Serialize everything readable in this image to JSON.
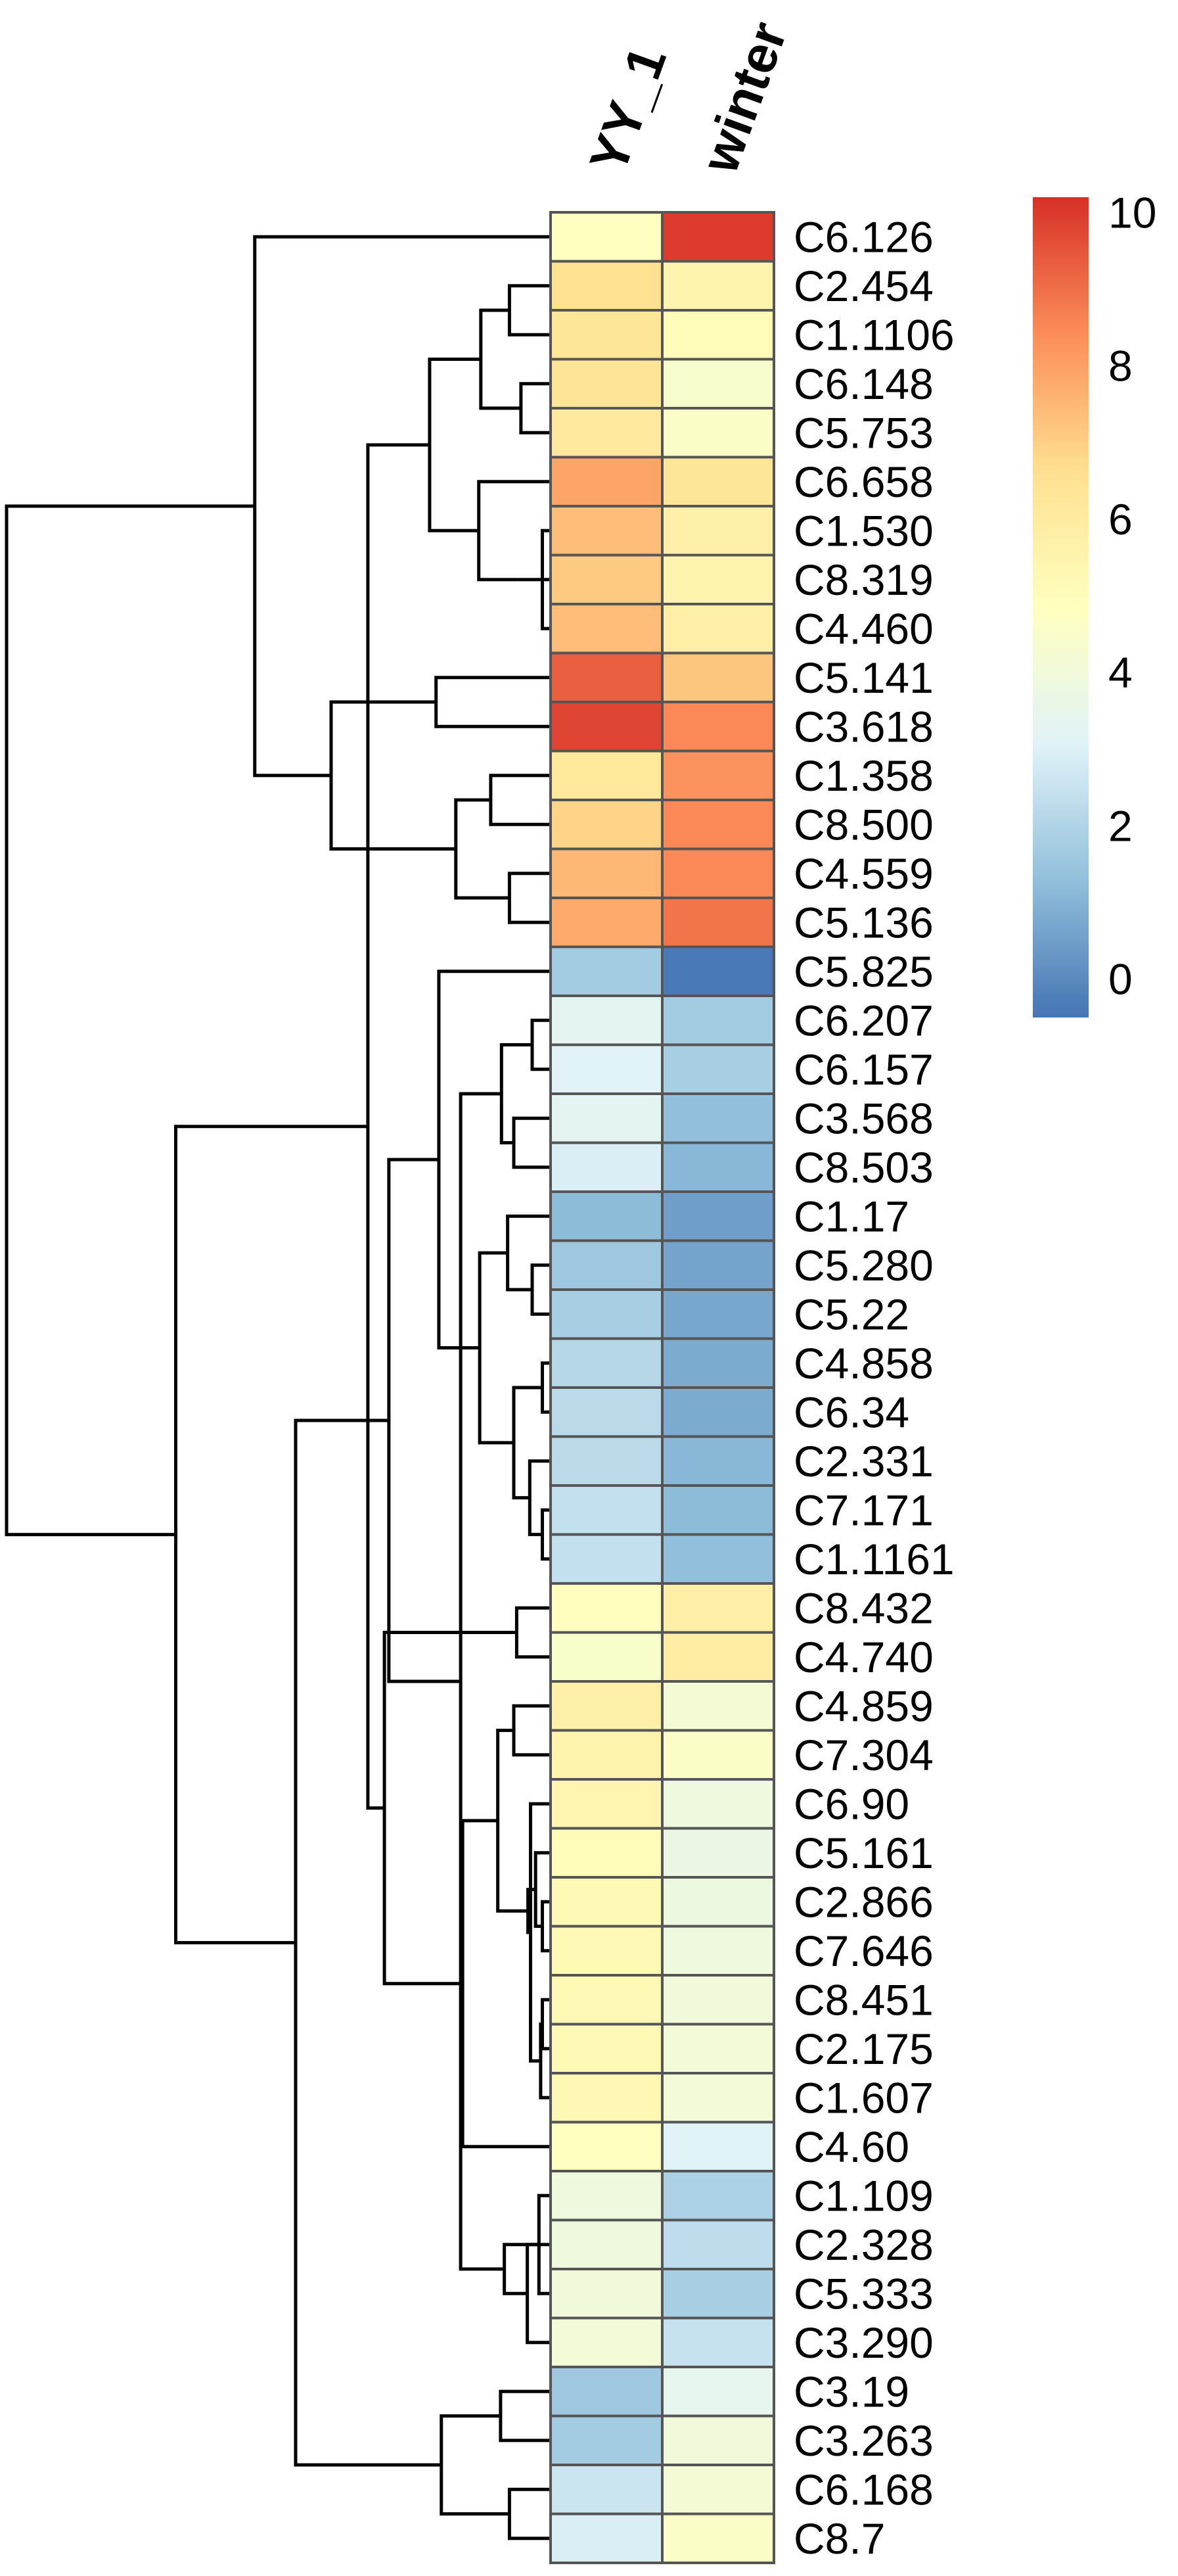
{
  "chart_data": {
    "type": "heatmap",
    "title": "",
    "columns": [
      "YY_1",
      "winter"
    ],
    "rows": [
      "C6.126",
      "C2.454",
      "C1.1106",
      "C6.148",
      "C5.753",
      "C6.658",
      "C1.530",
      "C8.319",
      "C4.460",
      "C5.141",
      "C3.618",
      "C1.358",
      "C8.500",
      "C4.559",
      "C5.136",
      "C5.825",
      "C6.207",
      "C6.157",
      "C3.568",
      "C8.503",
      "C1.17",
      "C5.280",
      "C5.22",
      "C4.858",
      "C6.34",
      "C2.331",
      "C7.171",
      "C1.1161",
      "C8.432",
      "C4.740",
      "C4.859",
      "C7.304",
      "C6.90",
      "C5.161",
      "C2.866",
      "C7.646",
      "C8.451",
      "C2.175",
      "C1.607",
      "C4.60",
      "C1.109",
      "C2.328",
      "C5.333",
      "C3.290",
      "C3.19",
      "C3.263",
      "C6.168",
      "C8.7"
    ],
    "values": [
      [
        4.8,
        10.0
      ],
      [
        6.6,
        5.5
      ],
      [
        6.3,
        5.1
      ],
      [
        6.4,
        4.4
      ],
      [
        6.1,
        4.6
      ],
      [
        7.9,
        6.3
      ],
      [
        7.4,
        5.7
      ],
      [
        7.1,
        5.5
      ],
      [
        7.4,
        5.8
      ],
      [
        9.3,
        7.2
      ],
      [
        9.8,
        8.5
      ],
      [
        6.2,
        8.3
      ],
      [
        6.9,
        8.5
      ],
      [
        7.5,
        8.5
      ],
      [
        7.8,
        8.9
      ],
      [
        1.7,
        -0.4
      ],
      [
        3.3,
        1.7
      ],
      [
        3.1,
        1.8
      ],
      [
        3.3,
        1.3
      ],
      [
        2.9,
        1.1
      ],
      [
        1.2,
        0.5
      ],
      [
        1.6,
        0.6
      ],
      [
        1.8,
        0.7
      ],
      [
        2.1,
        0.8
      ],
      [
        2.2,
        0.8
      ],
      [
        2.2,
        1.1
      ],
      [
        2.4,
        1.2
      ],
      [
        2.4,
        1.3
      ],
      [
        4.9,
        5.8
      ],
      [
        4.5,
        5.9
      ],
      [
        5.7,
        4.2
      ],
      [
        5.5,
        4.6
      ],
      [
        5.4,
        3.9
      ],
      [
        5.1,
        3.7
      ],
      [
        5.2,
        3.8
      ],
      [
        5.2,
        3.9
      ],
      [
        5.2,
        4.0
      ],
      [
        5.2,
        4.1
      ],
      [
        5.3,
        4.1
      ],
      [
        4.8,
        3.1
      ],
      [
        3.9,
        1.9
      ],
      [
        3.9,
        2.3
      ],
      [
        4.0,
        1.8
      ],
      [
        4.1,
        2.5
      ],
      [
        1.6,
        3.4
      ],
      [
        1.7,
        4.0
      ],
      [
        2.6,
        4.2
      ],
      [
        2.9,
        4.6
      ]
    ],
    "colorbar": {
      "ticks": [
        0,
        2,
        4,
        6,
        8,
        10
      ],
      "range": [
        -0.5,
        10.2
      ]
    },
    "colors": {
      "scale": [
        "#4575b4",
        "#91bfdb",
        "#e0f3f8",
        "#ffffbf",
        "#fee090",
        "#fc8d59",
        "#d73027"
      ],
      "border": "#555555",
      "line": "#000000",
      "text": "#000000"
    }
  }
}
